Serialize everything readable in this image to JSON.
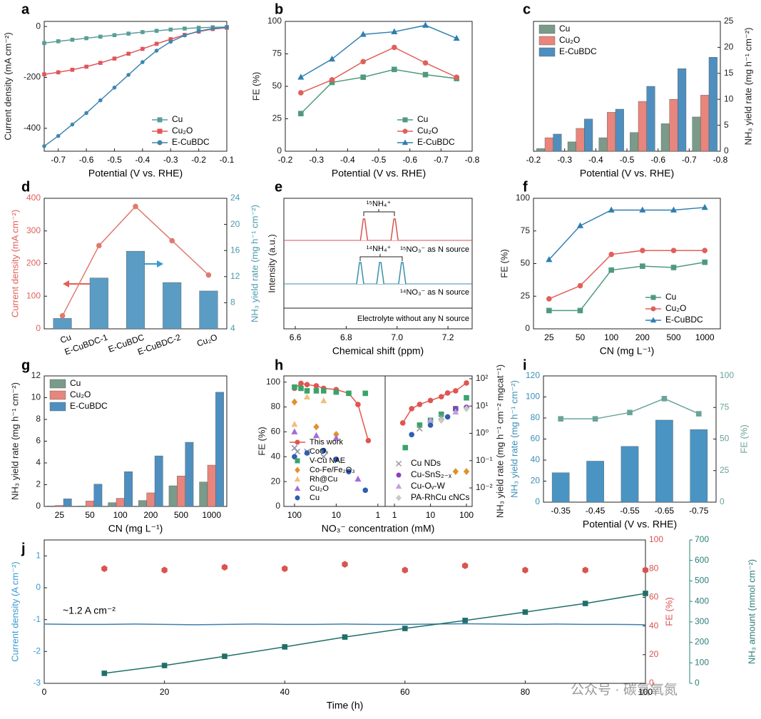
{
  "chart_data": [
    {
      "type": "line",
      "panel_label": "a",
      "xlabel": "Potential (V vs. RHE)",
      "ylabel": "Current density (mA cm⁻²)",
      "x": [
        -0.75,
        -0.7,
        -0.65,
        -0.6,
        -0.55,
        -0.5,
        -0.45,
        -0.4,
        -0.35,
        -0.3,
        -0.25,
        -0.2,
        -0.15,
        -0.1
      ],
      "xlim": [
        -0.75,
        -0.1
      ],
      "xticks": [
        -0.7,
        -0.6,
        -0.5,
        -0.4,
        -0.3,
        -0.2,
        -0.1
      ],
      "ylim": [
        -490,
        20
      ],
      "yticks": [
        -400,
        -200,
        0
      ],
      "legend": "lower right",
      "series": [
        {
          "name": "Cu",
          "color": "#5a9e9a",
          "marker": "square",
          "values": [
            -65,
            -58,
            -52,
            -46,
            -40,
            -34,
            -28,
            -22,
            -17,
            -12,
            -8,
            -5,
            -3,
            -2
          ]
        },
        {
          "name": "Cu₂O",
          "color": "#e0555a",
          "marker": "square",
          "values": [
            -188,
            -180,
            -170,
            -158,
            -143,
            -126,
            -107,
            -88,
            -68,
            -50,
            -33,
            -20,
            -10,
            -5
          ]
        },
        {
          "name": "E-CuBDC",
          "color": "#3f86b0",
          "marker": "circle",
          "values": [
            -470,
            -430,
            -385,
            -340,
            -290,
            -240,
            -190,
            -140,
            -95,
            -60,
            -35,
            -18,
            -8,
            -3
          ]
        }
      ]
    },
    {
      "type": "line",
      "panel_label": "b",
      "xlabel": "Potential (V vs. RHE)",
      "ylabel": "FE (%)",
      "x": [
        -0.25,
        -0.35,
        -0.45,
        -0.55,
        -0.65,
        -0.75
      ],
      "xlim": [
        -0.2,
        -0.8
      ],
      "xticks": [
        -0.2,
        -0.3,
        -0.4,
        -0.5,
        -0.6,
        -0.7,
        -0.8
      ],
      "ylim": [
        0,
        100
      ],
      "yticks": [
        0,
        25,
        50,
        75,
        100
      ],
      "legend": "lower right",
      "series": [
        {
          "name": "Cu",
          "color": "#4f9a7e",
          "marker": "square",
          "values": [
            29,
            53,
            57,
            63,
            59,
            56
          ]
        },
        {
          "name": "Cu₂O",
          "color": "#e0605a",
          "marker": "circle",
          "values": [
            45,
            55,
            69,
            80,
            68,
            57
          ]
        },
        {
          "name": "E-CuBDC",
          "color": "#2f7fb0",
          "marker": "triangle",
          "values": [
            57,
            71,
            90,
            92,
            97,
            87
          ]
        }
      ]
    },
    {
      "type": "bar",
      "panel_label": "c",
      "xlabel": "Potential (V vs. RHE)",
      "y2label": "NH₃ yield rate (mg h⁻¹ cm⁻²)",
      "x": [
        -0.25,
        -0.35,
        -0.45,
        -0.55,
        -0.65,
        -0.75
      ],
      "xlim": [
        -0.2,
        -0.8
      ],
      "xticks": [
        -0.2,
        -0.3,
        -0.4,
        -0.5,
        -0.6,
        -0.7,
        -0.8
      ],
      "y2lim": [
        0,
        25
      ],
      "y2ticks": [
        0,
        5,
        10,
        15,
        20,
        25
      ],
      "legend": "upper left",
      "series": [
        {
          "name": "Cu",
          "color": "#7a9a8a",
          "axis": "y2",
          "values": [
            0.5,
            1.8,
            2.6,
            3.6,
            5.3,
            6.6
          ]
        },
        {
          "name": "Cu₂O",
          "color": "#e8857c",
          "axis": "y2",
          "values": [
            2.6,
            4.4,
            7.5,
            9.6,
            10,
            10.8
          ]
        },
        {
          "name": "E-CuBDC",
          "color": "#4f8fbf",
          "axis": "y2",
          "values": [
            3.3,
            6.2,
            8.1,
            12.5,
            15.9,
            18.1
          ]
        }
      ]
    },
    {
      "type": "bar",
      "panel_label": "d",
      "ylabel": "Current density (mA cm⁻²)",
      "ycolor": "#e0605a",
      "y2label": "NH₃ yield rate (mg h⁻¹ cm⁻²)",
      "y2color": "#4a9ab0",
      "categories": [
        "Cu",
        "E-CuBDC-1",
        "E-CuBDC",
        "E-CuBDC-2",
        "Cu₂O"
      ],
      "ylim": [
        0,
        400
      ],
      "yticks": [
        0,
        100,
        200,
        300,
        400
      ],
      "y2lim": [
        4,
        24
      ],
      "y2ticks": [
        4,
        8,
        12,
        16,
        20,
        24
      ],
      "series": [
        {
          "color": "#5a9cc4",
          "axis": "y2",
          "mark": "bar",
          "values": [
            5.6,
            11.8,
            15.9,
            11.1,
            9.8
          ]
        },
        {
          "color": "#e07a6f",
          "mark": "line",
          "marker": "circle",
          "values": [
            40,
            255,
            375,
            270,
            165
          ]
        }
      ]
    },
    {
      "type": "spectrum",
      "panel_label": "e",
      "xlabel": "Chemical shift (ppm)",
      "ylabel": "Intensity (a.u.)",
      "xlim": [
        6.555,
        7.295
      ],
      "xticks": [
        6.6,
        6.8,
        {
          "value": 7,
          "label": "7.0"
        },
        7.2
      ],
      "annotations": [
        "¹⁵NH₄⁺",
        "¹⁴NH₄⁺",
        "¹⁵NO₃⁻ as N source",
        "¹⁴NO₃⁻ as N source",
        "Electrolyte without any N source"
      ],
      "series": [
        {
          "color": "#d9534f",
          "x": [
            6.87,
            6.99
          ]
        },
        {
          "color": "#3a8fa8",
          "x": [
            6.855,
            6.934,
            7.02
          ]
        }
      ]
    },
    {
      "type": "line",
      "panel_label": "f",
      "xlabel": "CN (mg L⁻¹)",
      "ylabel": "FE (%)",
      "categories": [
        "25",
        "50",
        "100",
        "200",
        "500",
        "1000"
      ],
      "ylim": [
        0,
        100
      ],
      "yticks": [
        0,
        25,
        50,
        75,
        100
      ],
      "legend": "lower right",
      "series": [
        {
          "name": "Cu",
          "color": "#4f9a7e",
          "marker": "square",
          "values": [
            14,
            14,
            45,
            48,
            47,
            51
          ]
        },
        {
          "name": "Cu₂O",
          "color": "#e0605a",
          "marker": "circle",
          "values": [
            23,
            33,
            57,
            60,
            60,
            60
          ]
        },
        {
          "name": "E-CuBDC",
          "color": "#2f7fb0",
          "marker": "triangle",
          "values": [
            53,
            79,
            91,
            91,
            91,
            93
          ]
        }
      ]
    },
    {
      "type": "bar",
      "panel_label": "g",
      "xlabel": "CN (mg L⁻¹)",
      "ylabel": "NH₃ yield rate (mg h⁻¹ cm⁻²)",
      "categories": [
        "25",
        "50",
        "100",
        "200",
        "500",
        "1000"
      ],
      "ylim": [
        0,
        12
      ],
      "yticks": [
        0,
        2,
        4,
        6,
        8,
        10,
        12
      ],
      "legend": "upper left",
      "series": [
        {
          "name": "Cu",
          "color": "#7a9a8a",
          "values": [
            0.05,
            0.05,
            0.35,
            0.55,
            1.9,
            2.25
          ]
        },
        {
          "name": "Cu₂O",
          "color": "#e8857c",
          "values": [
            0.1,
            0.5,
            0.75,
            1.25,
            2.8,
            3.8
          ]
        },
        {
          "name": "E-CuBDC",
          "color": "#4f8fbf",
          "values": [
            0.7,
            2.05,
            3.2,
            4.65,
            5.9,
            10.5
          ]
        }
      ]
    },
    {
      "type": "scatter",
      "panel_label": "h",
      "xlabel": "NO₃⁻ concentration (mM)",
      "ylabel": "FE (%)",
      "xscale": "log",
      "xlim": [
        180,
        0.67
      ],
      "xticks": [
        100,
        10,
        1
      ],
      "ylim": [
        0,
        105
      ],
      "yticks": [
        0,
        20,
        40,
        60,
        80,
        100
      ],
      "legend": "lower left",
      "series": [
        {
          "name": "This work",
          "color": "#e0554f",
          "mark": "line",
          "marker": "circle",
          "x": [
            100,
            70,
            50,
            30,
            20,
            10,
            5,
            3,
            1.7
          ],
          "values": [
            95,
            99,
            98,
            97,
            95,
            94,
            91,
            82,
            53
          ]
        },
        {
          "name": "CoOₓ",
          "color": "#8a8aa8",
          "marker": "cross",
          "x": [
            100,
            50,
            20
          ],
          "values": [
            47,
            44,
            40
          ]
        },
        {
          "name": "V-Cu NAE",
          "color": "#3aa36a",
          "marker": "square",
          "x": [
            100,
            70,
            50,
            30,
            20,
            10,
            5,
            2
          ],
          "values": [
            96,
            95,
            93,
            93,
            93,
            92,
            91,
            91
          ]
        },
        {
          "name": "Co-Fe/Fe₂O₃",
          "color": "#e0922b",
          "marker": "diamond",
          "x": [
            100,
            30,
            10
          ],
          "values": [
            84,
            64,
            58
          ]
        },
        {
          "name": "Rh@Cu",
          "color": "#f0c080",
          "marker": "triangle",
          "x": [
            100,
            50,
            20
          ],
          "values": [
            66,
            88,
            85
          ]
        },
        {
          "name": "Cu₂O",
          "color": "#a46bd8",
          "marker": "triangle",
          "x": [
            100,
            30,
            10,
            3
          ],
          "values": [
            60,
            57,
            55,
            22
          ]
        },
        {
          "name": "Cu",
          "color": "#2f5fb0",
          "marker": "circle",
          "x": [
            100,
            50,
            20,
            10,
            5,
            2
          ],
          "values": [
            40,
            43,
            45,
            38,
            28,
            13
          ]
        }
      ]
    },
    {
      "type": "scatter",
      "y2label": "NH₃ yield rate (mg h⁻¹ cm⁻² mgcat⁻¹)",
      "xscale": "log",
      "xlim": [
        0.55,
        144
      ],
      "xticks": [
        1,
        10,
        100
      ],
      "y2scale": "log",
      "y2lim": [
        0.0021,
        127
      ],
      "y2ticks": [
        {
          "value": 100,
          "label": "10²"
        },
        {
          "value": 10,
          "label": "10¹"
        },
        {
          "value": 1,
          "label": "10⁰"
        },
        {
          "value": 0.1,
          "label": "10⁻¹"
        },
        {
          "value": 0.01,
          "label": "10⁻²"
        }
      ],
      "legend": "lower left",
      "series": [
        {
          "color": "#e0554f",
          "axis": "y2",
          "mark": "line",
          "marker": "circle",
          "x": [
            1.7,
            3,
            5,
            10,
            20,
            30,
            50,
            100
          ],
          "values": [
            2.4,
            8,
            11.5,
            16,
            22,
            30,
            36,
            70
          ]
        },
        {
          "color": "#3aa36a",
          "axis": "y2",
          "marker": "square",
          "x": [
            2,
            5,
            10,
            20,
            50,
            100
          ],
          "values": [
            0.3,
            2,
            3,
            5,
            8,
            20
          ]
        },
        {
          "color": "#e0922b",
          "axis": "y2",
          "marker": "diamond",
          "x": [
            50,
            100
          ],
          "values": [
            0.04,
            0.04
          ]
        },
        {
          "color": "#2f5fb0",
          "axis": "y2",
          "marker": "circle",
          "x": [
            3,
            10,
            30
          ],
          "values": [
            0.9,
            2,
            4
          ]
        },
        {
          "name": "Cu NDs",
          "color": "#9a9a9a",
          "axis": "y2",
          "marker": "cross",
          "x": [
            5,
            20
          ],
          "values": [
            1.5,
            4
          ]
        },
        {
          "name": "Cu-SnS₂₋ₓ",
          "color": "#8b3fbf",
          "axis": "y2",
          "marker": "circle",
          "x": [
            50,
            100
          ],
          "values": [
            8,
            9
          ]
        },
        {
          "name": "Cu-Oᵥ-W",
          "color": "#c0a0e0",
          "axis": "y2",
          "marker": "triangle",
          "x": [
            10,
            50
          ],
          "values": [
            3,
            6
          ]
        },
        {
          "name": "PA-RhCu cNCs",
          "color": "#c8c8c8",
          "axis": "y2",
          "marker": "diamond",
          "x": [
            20,
            100
          ],
          "values": [
            3,
            8
          ]
        }
      ]
    },
    {
      "type": "bar",
      "panel_label": "i",
      "xlabel": "Potential (V vs. RHE)",
      "ylabel": "NH₃ yield rate (mg h⁻¹ cm⁻²)",
      "ycolor": "#3a8fb7",
      "y2label": "FE (%)",
      "y2color": "#6aa39a",
      "categories": [
        "-0.35",
        "-0.45",
        "-0.55",
        "-0.65",
        "-0.75"
      ],
      "ylim": [
        0,
        120
      ],
      "yticks": [
        0,
        20,
        40,
        60,
        80,
        100,
        120
      ],
      "y2lim": [
        0,
        100
      ],
      "y2ticks": [
        0,
        25,
        50,
        75,
        100
      ],
      "series": [
        {
          "color": "#4a94c4",
          "mark": "bar",
          "values": [
            28,
            39,
            53,
            78,
            69
          ]
        },
        {
          "color": "#6aa39a",
          "axis": "y2",
          "mark": "line",
          "marker": "square",
          "values": [
            66,
            66,
            71,
            82,
            70
          ]
        }
      ]
    },
    {
      "type": "line",
      "panel_label": "j",
      "xlabel": "Time (h)",
      "ylabel": "Current density (A cm⁻²)",
      "ycolor": "#3a9ad0",
      "y2label": "FE (%)",
      "y2color": "#d9534f",
      "y3label": "NH₃ amount (mmol cm⁻²)",
      "y3color": "#2a7f7a",
      "x": [
        0,
        5,
        10,
        15,
        20,
        25,
        30,
        35,
        40,
        45,
        50,
        55,
        60,
        65,
        70,
        75,
        80,
        85,
        90,
        95,
        100
      ],
      "xlim": [
        0,
        100
      ],
      "xticks": [
        0,
        20,
        40,
        60,
        80,
        100
      ],
      "ylim": [
        -3,
        1.5
      ],
      "yticks": [
        1,
        0,
        -1,
        -2,
        -3
      ],
      "y2lim": [
        0,
        100
      ],
      "y2ticks": [
        0,
        20,
        40,
        60,
        80,
        100
      ],
      "y3lim": [
        0,
        700
      ],
      "y3ticks": [
        0,
        100,
        200,
        300,
        400,
        500,
        600,
        700
      ],
      "annotations": [
        "~1.2 A cm⁻²"
      ],
      "series": [
        {
          "color": "#3d7fb0",
          "values": [
            -1.14,
            -1.15,
            -1.15,
            -1.14,
            -1.15,
            -1.16,
            -1.15,
            -1.14,
            -1.15,
            -1.15,
            -1.14,
            -1.15,
            -1.15,
            -1.14,
            -1.13,
            -1.14,
            -1.15,
            -1.14,
            -1.15,
            -1.15,
            -1.16
          ]
        },
        {
          "color": "#d9534f",
          "axis": "y2",
          "mark": "scatter",
          "marker": "hexagon",
          "x": [
            10,
            20,
            30,
            40,
            50,
            60,
            70,
            80,
            90,
            100
          ],
          "values": [
            80,
            79,
            81,
            80,
            83,
            79,
            82,
            79,
            79,
            79
          ]
        },
        {
          "color": "#1f6f6a",
          "axis": "y3",
          "mark": "line",
          "marker": "square",
          "x": [
            10,
            20,
            30,
            40,
            50,
            60,
            70,
            80,
            90,
            100
          ],
          "values": [
            49,
            87,
            132,
            178,
            226,
            268,
            307,
            348,
            390,
            439
          ]
        }
      ]
    }
  ],
  "watermark": "公众号 · 碳氢氧氮"
}
